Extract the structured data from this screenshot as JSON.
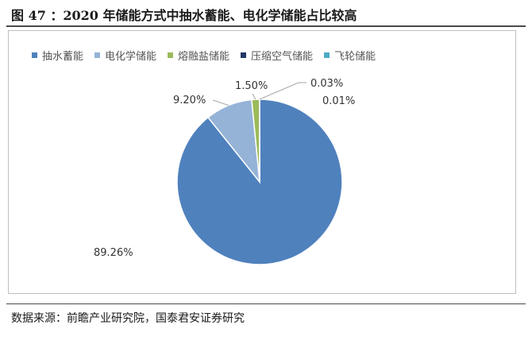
{
  "figure": {
    "title": "图 47 ：2020 年储能方式中抽水蓄能、电化学储能占比较高",
    "source": "数据来源：前瞻产业研究院，国泰君安证券研究"
  },
  "chart_data": {
    "type": "pie",
    "categories": [
      "抽水蓄能",
      "电化学储能",
      "熔融盐储能",
      "压缩空气储能",
      "飞轮储能"
    ],
    "values": [
      89.26,
      9.2,
      1.5,
      0.03,
      0.01
    ],
    "labels": [
      "89.26%",
      "9.20%",
      "1.50%",
      "0.03%",
      "0.01%"
    ],
    "colors": [
      "#4f81bd",
      "#95b3d7",
      "#9bbb59",
      "#1f3864",
      "#4bacc6"
    ],
    "legend_position": "top-left"
  }
}
